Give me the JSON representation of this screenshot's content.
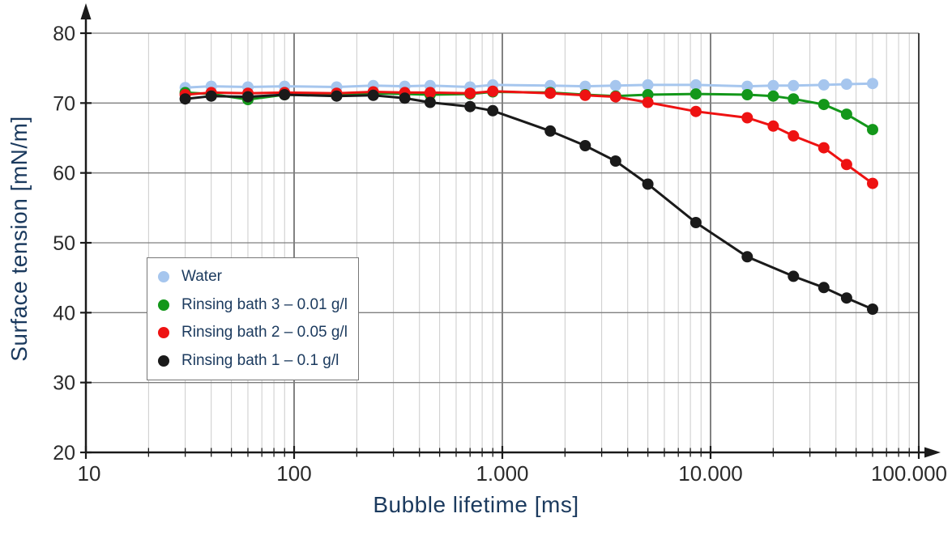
{
  "chart_data": {
    "type": "line",
    "title": "",
    "xlabel": "Bubble lifetime [ms]",
    "ylabel": "Surface tension [mN/m]",
    "xscale": "log",
    "xlim": [
      10,
      100000
    ],
    "ylim": [
      20,
      80
    ],
    "x_tick_values": [
      10,
      100,
      1000,
      10000,
      100000
    ],
    "x_tick_labels": [
      "10",
      "100",
      "1.000",
      "10.000",
      "100.000"
    ],
    "y_tick_values": [
      20,
      30,
      40,
      50,
      60,
      70,
      80
    ],
    "y_tick_labels": [
      "20",
      "30",
      "40",
      "50",
      "60",
      "70",
      "80"
    ],
    "grid": {
      "horizontal_major": true,
      "vertical_log_minor": true,
      "vertical_decade_major": true
    },
    "legend_position": "inside-left",
    "x": [
      30,
      40,
      60,
      90,
      160,
      240,
      340,
      450,
      700,
      900,
      1700,
      2500,
      3500,
      5000,
      8500,
      15000,
      20000,
      25000,
      35000,
      45000,
      60000
    ],
    "series": [
      {
        "name": "Water",
        "color": "#a6c6ee",
        "values": [
          72.2,
          72.4,
          72.3,
          72.4,
          72.3,
          72.5,
          72.4,
          72.5,
          72.3,
          72.6,
          72.5,
          72.4,
          72.5,
          72.6,
          72.6,
          72.4,
          72.5,
          72.5,
          72.6,
          72.7,
          72.8
        ]
      },
      {
        "name": "Rinsing bath 3 – 0.01 g/l",
        "color": "#13971a",
        "values": [
          71.5,
          71.3,
          70.5,
          71.2,
          71.1,
          71.4,
          71.3,
          71.2,
          71.3,
          71.6,
          71.5,
          71.2,
          71.0,
          71.2,
          71.3,
          71.2,
          71.0,
          70.6,
          69.8,
          68.4,
          66.2
        ]
      },
      {
        "name": "Rinsing bath 2 – 0.05 g/l",
        "color": "#ee1212",
        "values": [
          71.2,
          71.5,
          71.4,
          71.5,
          71.4,
          71.6,
          71.5,
          71.5,
          71.4,
          71.7,
          71.4,
          71.1,
          70.9,
          70.1,
          68.8,
          67.9,
          66.7,
          65.3,
          63.6,
          61.2,
          58.5
        ]
      },
      {
        "name": "Rinsing bath 1 – 0.1 g/l",
        "color": "#1a1a1a",
        "values": [
          70.6,
          71.0,
          70.9,
          71.2,
          71.0,
          71.1,
          70.7,
          70.1,
          69.5,
          68.9,
          66.0,
          63.9,
          61.7,
          58.4,
          52.9,
          48.0,
          null,
          45.2,
          43.6,
          42.1,
          40.5
        ]
      }
    ]
  },
  "colors": {
    "background": "#ffffff",
    "axis": "#1a1a1a",
    "tick_label": "#2b2b2b",
    "axis_title": "#1b3a5e",
    "grid_horizontal": "#7f7f7f",
    "grid_minor_vertical": "#cbcbcb",
    "grid_major_vertical": "#3f3f3f",
    "plot_right_border": "#3f3f3f",
    "legend_border": "#777777",
    "legend_text": "#1b3a5e"
  }
}
